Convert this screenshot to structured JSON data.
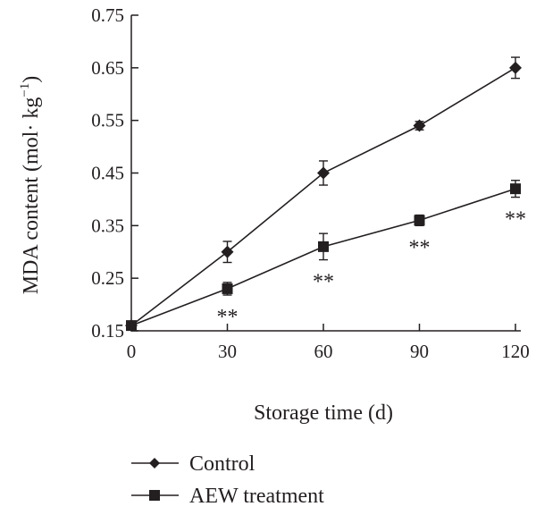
{
  "chart_data": {
    "type": "line",
    "xlabel": "Storage time (d)",
    "ylabel": "MDA content (mol· kg",
    "ylabel_sup": "−1",
    "ylabel_close": ")",
    "x": [
      0,
      30,
      60,
      90,
      120
    ],
    "xlim": [
      0,
      120
    ],
    "ylim": [
      0.15,
      0.75
    ],
    "xticks": [
      "0",
      "30",
      "60",
      "90",
      "120"
    ],
    "yticks": [
      "0.15",
      "0.25",
      "0.35",
      "0.45",
      "0.55",
      "0.65",
      "0.75"
    ],
    "grid": false,
    "legend_position": "bottom",
    "series": [
      {
        "name": "Control",
        "marker": "diamond",
        "values": [
          0.16,
          0.3,
          0.45,
          0.54,
          0.65
        ],
        "errors": [
          0.005,
          0.02,
          0.023,
          0.008,
          0.02
        ]
      },
      {
        "name": "AEW treatment",
        "marker": "square",
        "values": [
          0.16,
          0.23,
          0.31,
          0.36,
          0.42
        ],
        "errors": [
          0.005,
          0.012,
          0.025,
          0.01,
          0.016
        ],
        "annotations": [
          "",
          "**",
          "**",
          "**",
          "**"
        ]
      }
    ],
    "colors": {
      "ink": "#231f20"
    }
  }
}
